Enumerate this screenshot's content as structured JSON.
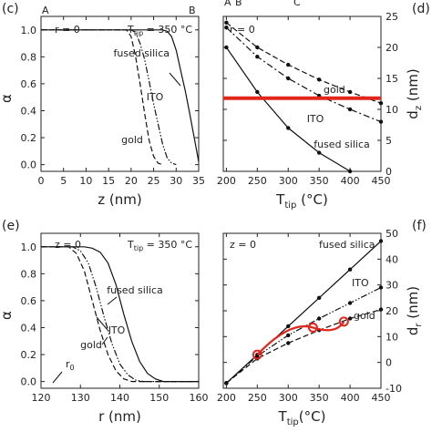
{
  "chart_data": [
    {
      "panel_label": "(c)",
      "type": "line",
      "corner_labels": [
        "A",
        "B"
      ],
      "annotations": [
        "r = 0",
        "T",
        "tip",
        " = 350 °C"
      ],
      "xlabel": "z (nm)",
      "ylabel": "α",
      "xlim": [
        0,
        35
      ],
      "ylim": [
        -0.05,
        1.1
      ],
      "xticks": [
        "0",
        "5",
        "10",
        "15",
        "20",
        "25",
        "30",
        "35"
      ],
      "yticks": [
        "0.0",
        "0.2",
        "0.4",
        "0.6",
        "0.8",
        "1.0"
      ],
      "series": [
        {
          "name": "fused silica",
          "style": "solid",
          "x": [
            0,
            27,
            28,
            29,
            30,
            31,
            32,
            33,
            34,
            35
          ],
          "y": [
            1.0,
            1.0,
            0.99,
            0.95,
            0.85,
            0.7,
            0.55,
            0.38,
            0.2,
            0.02
          ]
        },
        {
          "name": "ITO",
          "style": "dashdotdot",
          "x": [
            0,
            20,
            21,
            22,
            23,
            24,
            25,
            26,
            27,
            28,
            29,
            30
          ],
          "y": [
            1.0,
            1.0,
            0.98,
            0.9,
            0.78,
            0.62,
            0.45,
            0.3,
            0.15,
            0.05,
            0.01,
            0.0
          ]
        },
        {
          "name": "gold",
          "style": "dashed",
          "x": [
            0,
            19,
            20,
            21,
            22,
            23,
            24,
            25,
            26,
            27
          ],
          "y": [
            1.0,
            1.0,
            0.95,
            0.8,
            0.6,
            0.38,
            0.18,
            0.06,
            0.01,
            0.0
          ]
        }
      ]
    },
    {
      "panel_label": "(d)",
      "type": "line",
      "corner_labels": [
        "A",
        "B",
        "C"
      ],
      "annotations": [
        "r = 0"
      ],
      "xlabel": "T",
      "xlabel_sub": "tip",
      "xlabel_unit": " (°C)",
      "ylabel": "d",
      "ylabel_sub": "z",
      "ylabel_unit": " (nm)",
      "xlim": [
        195,
        450
      ],
      "ylim": [
        0,
        25
      ],
      "xticks": [
        "200",
        "250",
        "300",
        "350",
        "400",
        "450"
      ],
      "yticks": [
        "0",
        "5",
        "10",
        "15",
        "20",
        "25"
      ],
      "series": [
        {
          "name": "gold",
          "style": "dashed",
          "x": [
            200,
            250,
            300,
            350,
            400,
            450
          ],
          "y": [
            24.0,
            20.0,
            17.2,
            14.8,
            12.8,
            11.0
          ]
        },
        {
          "name": "ITO",
          "style": "dashdot",
          "x": [
            200,
            250,
            300,
            350,
            400,
            450
          ],
          "y": [
            23.2,
            18.5,
            15.0,
            12.2,
            10.0,
            8.0
          ]
        },
        {
          "name": "fused silica",
          "style": "solid",
          "x": [
            200,
            250,
            300,
            350,
            400
          ],
          "y": [
            20.0,
            12.8,
            7.0,
            3.0,
            0.0
          ]
        }
      ],
      "highlight": {
        "color": "#e3261c",
        "kind": "horizontal-line",
        "y": 11.8
      }
    },
    {
      "panel_label": "(e)",
      "type": "line",
      "annotations": [
        "z = 0",
        "T",
        "tip",
        " = 350 °C",
        "r",
        "0"
      ],
      "xlabel": "r (nm)",
      "ylabel": "α",
      "xlim": [
        120,
        160
      ],
      "ylim": [
        -0.05,
        1.1
      ],
      "xticks": [
        "120",
        "130",
        "140",
        "150",
        "160"
      ],
      "yticks": [
        "0.0",
        "0.2",
        "0.4",
        "0.6",
        "0.8",
        "1.0"
      ],
      "series": [
        {
          "name": "fused silica",
          "style": "solid",
          "x": [
            120,
            131,
            133,
            135,
            137,
            139,
            141,
            143,
            145,
            147,
            149,
            151,
            160
          ],
          "y": [
            1.0,
            1.0,
            0.99,
            0.96,
            0.88,
            0.72,
            0.5,
            0.3,
            0.15,
            0.06,
            0.02,
            0.0,
            0.0
          ]
        },
        {
          "name": "ITO",
          "style": "dashdotdot",
          "x": [
            120,
            128,
            130,
            132,
            134,
            136,
            138,
            140,
            142,
            144,
            146,
            160
          ],
          "y": [
            1.0,
            1.0,
            0.97,
            0.88,
            0.7,
            0.48,
            0.28,
            0.13,
            0.05,
            0.01,
            0.0,
            0.0
          ]
        },
        {
          "name": "gold",
          "style": "dashed",
          "x": [
            120,
            127,
            129,
            131,
            133,
            135,
            137,
            139,
            141,
            143,
            160
          ],
          "y": [
            1.0,
            1.0,
            0.95,
            0.82,
            0.6,
            0.38,
            0.2,
            0.08,
            0.02,
            0.0,
            0.0
          ]
        }
      ]
    },
    {
      "panel_label": "(f)",
      "type": "line",
      "annotations": [
        "z = 0"
      ],
      "xlabel": "T",
      "xlabel_sub": "tip",
      "xlabel_unit": "(°C)",
      "ylabel": "d",
      "ylabel_sub": "r",
      "ylabel_unit": " (nm)",
      "xlim": [
        195,
        450
      ],
      "ylim": [
        -10,
        50
      ],
      "xticks": [
        "200",
        "250",
        "300",
        "350",
        "400",
        "450"
      ],
      "yticks": [
        "-10",
        "0",
        "10",
        "20",
        "30",
        "40",
        "50"
      ],
      "series": [
        {
          "name": "fused silica",
          "style": "solid",
          "x": [
            200,
            250,
            300,
            350,
            400,
            450
          ],
          "y": [
            -8.0,
            3.0,
            14.0,
            25.0,
            36.0,
            47.0
          ]
        },
        {
          "name": "ITO",
          "style": "dashdotdot",
          "x": [
            200,
            250,
            300,
            350,
            400,
            450
          ],
          "y": [
            -8.0,
            2.5,
            10.5,
            17.0,
            23.0,
            29.0
          ]
        },
        {
          "name": "gold",
          "style": "dashed",
          "x": [
            200,
            250,
            300,
            350,
            400,
            450
          ],
          "y": [
            -8.0,
            1.5,
            7.5,
            12.5,
            17.0,
            20.5
          ]
        }
      ],
      "highlight": {
        "color": "#e3261c",
        "kind": "curve-with-circles",
        "x": [
          250,
          340,
          390
        ],
        "y": [
          3.0,
          13.5,
          15.8
        ]
      }
    }
  ]
}
